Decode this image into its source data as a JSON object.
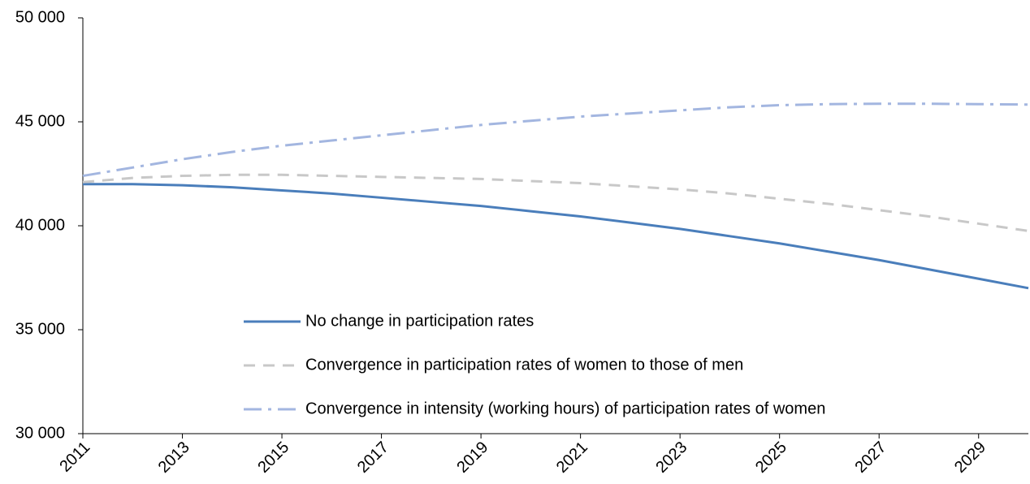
{
  "chart_data": {
    "type": "line",
    "x": [
      2011,
      2012,
      2013,
      2014,
      2015,
      2016,
      2017,
      2018,
      2019,
      2020,
      2021,
      2022,
      2023,
      2024,
      2025,
      2026,
      2027,
      2028,
      2029,
      2030
    ],
    "series": [
      {
        "name": "No change in participation rates",
        "color": "#4a7ebb",
        "dash": "solid",
        "values": [
          42000,
          42000,
          41950,
          41850,
          41700,
          41550,
          41350,
          41150,
          40950,
          40700,
          40450,
          40150,
          39850,
          39500,
          39150,
          38750,
          38350,
          37900,
          37450,
          37000
        ]
      },
      {
        "name": "Convergence in participation rates of women to those of men",
        "color": "#c8c8c8",
        "dash": "dashed",
        "values": [
          42100,
          42300,
          42400,
          42450,
          42450,
          42400,
          42350,
          42300,
          42250,
          42150,
          42050,
          41900,
          41750,
          41550,
          41300,
          41050,
          40750,
          40450,
          40100,
          39750
        ]
      },
      {
        "name": "Convergence in intensity (working hours) of participation rates of women",
        "color": "#a3b6e0",
        "dash": "dashdot",
        "values": [
          42400,
          42800,
          43200,
          43550,
          43850,
          44100,
          44350,
          44600,
          44850,
          45050,
          45250,
          45400,
          45550,
          45700,
          45800,
          45850,
          45870,
          45870,
          45850,
          45830
        ]
      }
    ],
    "xlim": [
      2011,
      2030
    ],
    "xticks": [
      2011,
      2013,
      2015,
      2017,
      2019,
      2021,
      2023,
      2025,
      2027,
      2029
    ],
    "ylim": [
      30000,
      50000
    ],
    "yticks": [
      {
        "value": 30000,
        "label": "30 000"
      },
      {
        "value": 35000,
        "label": "35 000"
      },
      {
        "value": 40000,
        "label": "40 000"
      },
      {
        "value": 45000,
        "label": "45 000"
      },
      {
        "value": 50000,
        "label": "50 000"
      }
    ],
    "grid": false,
    "legend": "lower center"
  }
}
